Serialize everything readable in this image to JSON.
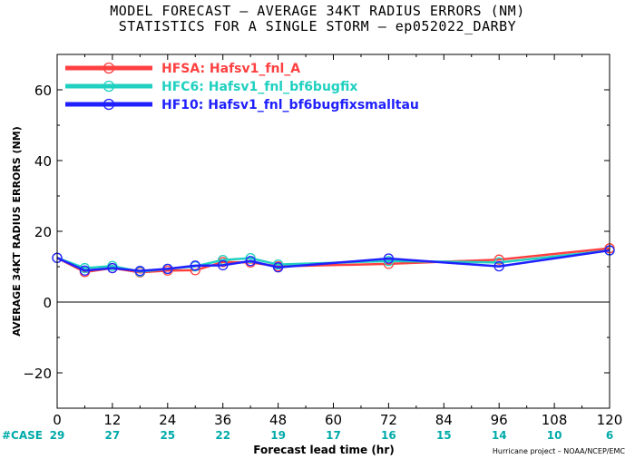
{
  "title_line1": "MODEL FORECAST – AVERAGE 34KT RADIUS ERRORS (NM)",
  "title_line2": "STATISTICS FOR A SINGLE STORM – ep052022_DARBY",
  "ylabel": "AVERAGE 34KT RADIUS ERRORS (NM)",
  "xlabel": "Forecast lead time (hr)",
  "credit": "Hurricane project – NOAA/NCEP/EMC",
  "case_label": "#CASE",
  "chart_data": {
    "type": "line",
    "xlim": [
      0,
      120
    ],
    "ylim": [
      -30,
      70
    ],
    "x_ticks": [
      0,
      12,
      24,
      36,
      48,
      60,
      72,
      84,
      96,
      108,
      120
    ],
    "y_ticks": [
      -20,
      0,
      20,
      40,
      60
    ],
    "x": [
      0,
      6,
      12,
      18,
      24,
      30,
      36,
      42,
      48,
      72,
      96,
      120
    ],
    "cases": {
      "x": [
        0,
        12,
        24,
        36,
        48,
        60,
        72,
        84,
        96,
        108,
        120
      ],
      "values": [
        29,
        27,
        25,
        22,
        19,
        17,
        16,
        15,
        14,
        10,
        6
      ]
    },
    "legend_position": "top-left",
    "grid": false,
    "series": [
      {
        "name": "HFSA:",
        "label": "Hafsv1_fnl_A",
        "color": "#ff4040",
        "values": [
          12.5,
          8.5,
          9.6,
          8.4,
          8.9,
          9.0,
          11.3,
          11.2,
          10.1,
          10.8,
          12.0,
          15.2
        ]
      },
      {
        "name": "HFC6:",
        "label": "Hafsv1_fnl_bf6bugfix",
        "color": "#20d0c0",
        "values": [
          12.5,
          9.6,
          10.2,
          8.6,
          9.4,
          10.1,
          11.9,
          12.4,
          10.6,
          11.6,
          11.2,
          14.6
        ]
      },
      {
        "name": "HF10:",
        "label": "Hafsv1_fnl_bf6bugfixsmalltau",
        "color": "#2020ff",
        "values": [
          12.5,
          8.9,
          9.6,
          8.8,
          9.4,
          10.3,
          10.4,
          11.6,
          9.8,
          12.3,
          10.1,
          14.6
        ]
      }
    ]
  }
}
